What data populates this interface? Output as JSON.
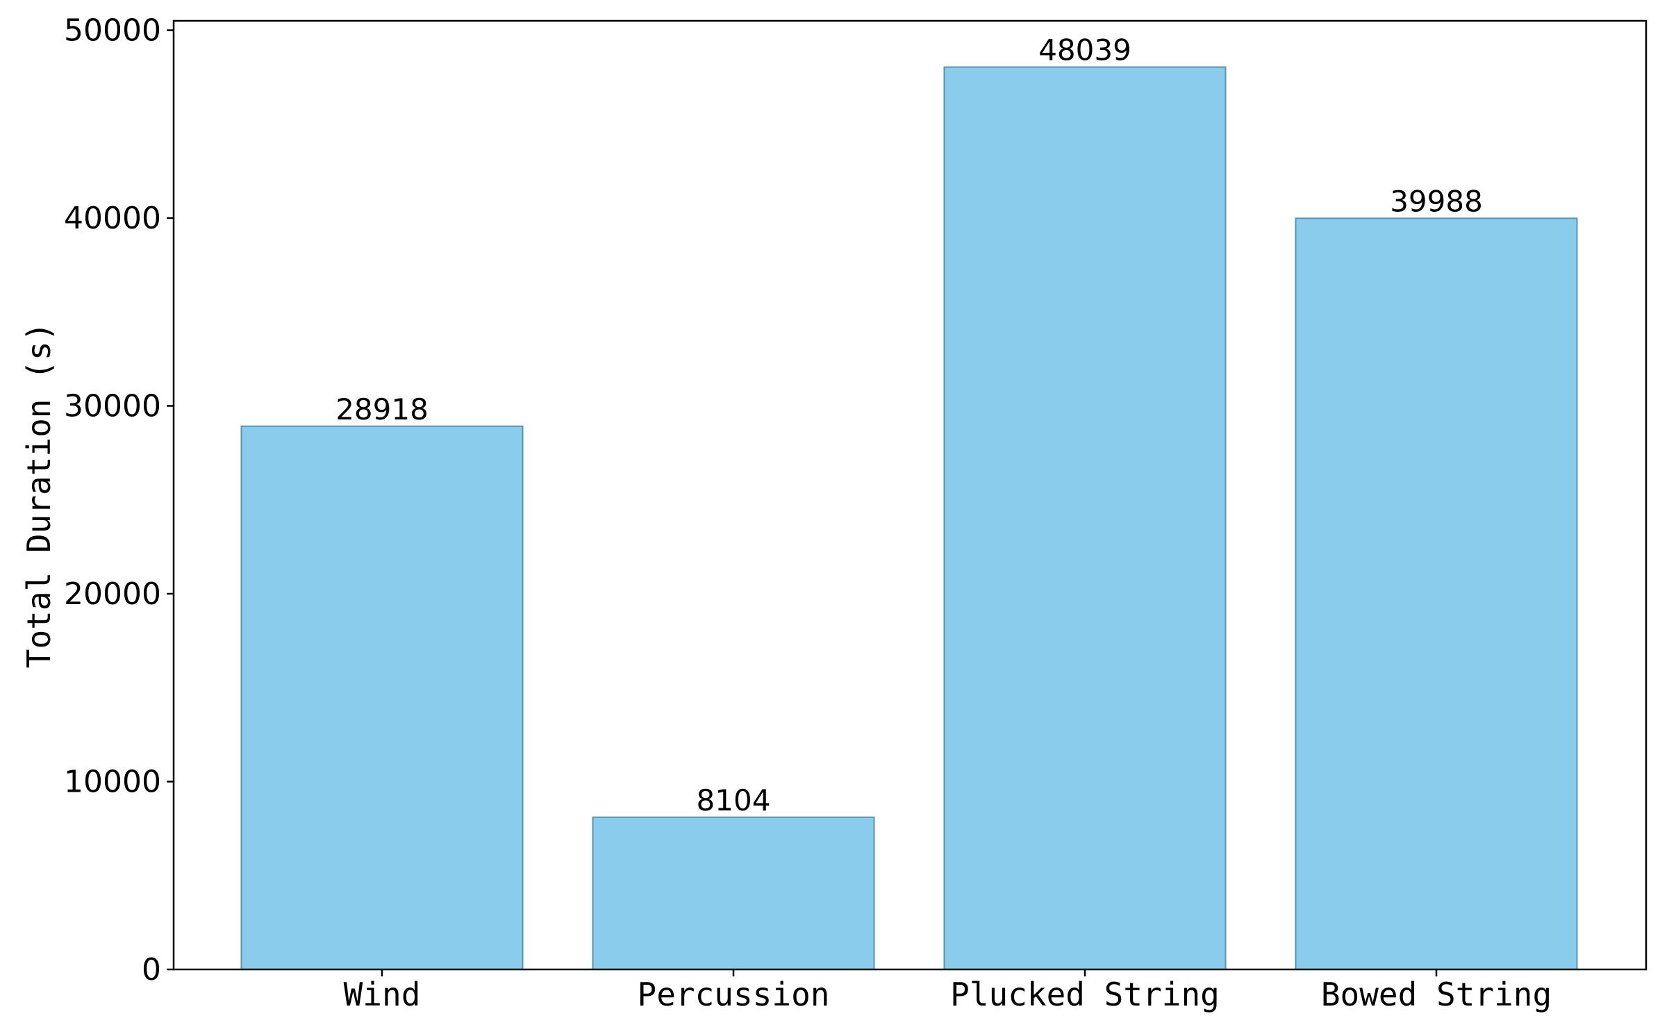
{
  "chart_data": {
    "type": "bar",
    "title": "",
    "xlabel": "",
    "ylabel": "Total Duration (s)",
    "categories": [
      "Wind",
      "Percussion",
      "Plucked String",
      "Bowed String"
    ],
    "values": [
      28918,
      8104,
      48039,
      39988
    ],
    "data_labels": [
      "28918",
      "8104",
      "48039",
      "39988"
    ],
    "ylim": [
      0,
      50500
    ],
    "yticks": [
      0,
      10000,
      20000,
      30000,
      40000,
      50000
    ],
    "ytick_labels": [
      "0",
      "10000",
      "20000",
      "30000",
      "40000",
      "50000"
    ],
    "grid": false,
    "legend": "none",
    "colors": {
      "bar_fill": "#89CCEC",
      "bar_edge": "#5A93AE",
      "axis": "#000000"
    }
  }
}
